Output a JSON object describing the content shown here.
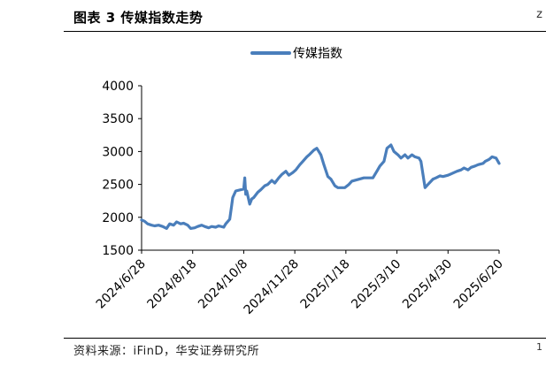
{
  "header": {
    "title": "图表 3 传媒指数走势",
    "corner_mark": "z"
  },
  "footer": {
    "source": "资料来源：iFinD，华安证券研究所",
    "corner_mark": "1"
  },
  "colors": {
    "series": "#4a7ebb",
    "axis": "#000000"
  },
  "chart_data": {
    "type": "line",
    "title": "",
    "xlabel": "",
    "ylabel": "",
    "ylim": [
      1500,
      4000
    ],
    "yticks": [
      1500,
      2000,
      2500,
      3000,
      3500,
      4000
    ],
    "ytick_labels": [
      "1500",
      "2000",
      "2500",
      "3000",
      "3500",
      "4000"
    ],
    "xlim": [
      "2024-06-28",
      "2025-06-20"
    ],
    "xticks": [
      "2024-06-28",
      "2024-08-18",
      "2024-10-08",
      "2024-11-28",
      "2025-01-18",
      "2025-03-10",
      "2025-04-30",
      "2025-06-20"
    ],
    "xtick_labels": [
      "2024/6/28",
      "2024/8/18",
      "2024/10/8",
      "2024/11/28",
      "2025/1/18",
      "2025/3/10",
      "2025/4/30",
      "2025/6/20"
    ],
    "grid": false,
    "legend": "top-center",
    "series": [
      {
        "name": "传媒指数",
        "x": [
          "2024-06-28",
          "2024-07-01",
          "2024-07-04",
          "2024-07-08",
          "2024-07-11",
          "2024-07-15",
          "2024-07-19",
          "2024-07-23",
          "2024-07-26",
          "2024-07-30",
          "2024-08-02",
          "2024-08-06",
          "2024-08-09",
          "2024-08-13",
          "2024-08-16",
          "2024-08-20",
          "2024-08-23",
          "2024-08-27",
          "2024-08-30",
          "2024-09-03",
          "2024-09-06",
          "2024-09-10",
          "2024-09-13",
          "2024-09-18",
          "2024-09-20",
          "2024-09-24",
          "2024-09-26",
          "2024-09-27",
          "2024-09-30",
          "2024-10-08",
          "2024-10-09",
          "2024-10-10",
          "2024-10-11",
          "2024-10-14",
          "2024-10-16",
          "2024-10-18",
          "2024-10-22",
          "2024-10-25",
          "2024-10-29",
          "2024-11-01",
          "2024-11-05",
          "2024-11-08",
          "2024-11-12",
          "2024-11-15",
          "2024-11-19",
          "2024-11-22",
          "2024-11-26",
          "2024-11-29",
          "2024-12-03",
          "2024-12-06",
          "2024-12-10",
          "2024-12-13",
          "2024-12-17",
          "2024-12-20",
          "2024-12-24",
          "2024-12-27",
          "2024-12-31",
          "2025-01-03",
          "2025-01-07",
          "2025-01-10",
          "2025-01-14",
          "2025-01-17",
          "2025-01-21",
          "2025-01-24",
          "2025-02-05",
          "2025-02-07",
          "2025-02-11",
          "2025-02-14",
          "2025-02-18",
          "2025-02-21",
          "2025-02-25",
          "2025-02-28",
          "2025-03-04",
          "2025-03-07",
          "2025-03-11",
          "2025-03-14",
          "2025-03-18",
          "2025-03-21",
          "2025-03-25",
          "2025-03-28",
          "2025-04-01",
          "2025-04-03",
          "2025-04-07",
          "2025-04-10",
          "2025-04-15",
          "2025-04-18",
          "2025-04-22",
          "2025-04-25",
          "2025-04-30",
          "2025-05-06",
          "2025-05-09",
          "2025-05-13",
          "2025-05-16",
          "2025-05-20",
          "2025-05-23",
          "2025-05-27",
          "2025-05-30",
          "2025-06-04",
          "2025-06-06",
          "2025-06-10",
          "2025-06-13",
          "2025-06-17",
          "2025-06-20"
        ],
        "values": [
          1960,
          1940,
          1900,
          1880,
          1870,
          1880,
          1860,
          1830,
          1900,
          1880,
          1930,
          1900,
          1910,
          1880,
          1830,
          1840,
          1860,
          1880,
          1860,
          1840,
          1860,
          1850,
          1870,
          1850,
          1900,
          1970,
          2180,
          2300,
          2400,
          2430,
          2600,
          2350,
          2400,
          2200,
          2280,
          2300,
          2380,
          2420,
          2480,
          2500,
          2560,
          2520,
          2600,
          2650,
          2700,
          2640,
          2680,
          2720,
          2800,
          2850,
          2920,
          2960,
          3020,
          3050,
          2950,
          2800,
          2620,
          2580,
          2480,
          2450,
          2450,
          2450,
          2500,
          2550,
          2600,
          2600,
          2600,
          2600,
          2700,
          2780,
          2850,
          3050,
          3100,
          3000,
          2950,
          2900,
          2950,
          2900,
          2950,
          2920,
          2900,
          2850,
          2450,
          2500,
          2580,
          2600,
          2630,
          2620,
          2640,
          2680,
          2700,
          2720,
          2750,
          2720,
          2760,
          2780,
          2800,
          2820,
          2850,
          2880,
          2920,
          2900,
          2820
        ]
      }
    ]
  }
}
